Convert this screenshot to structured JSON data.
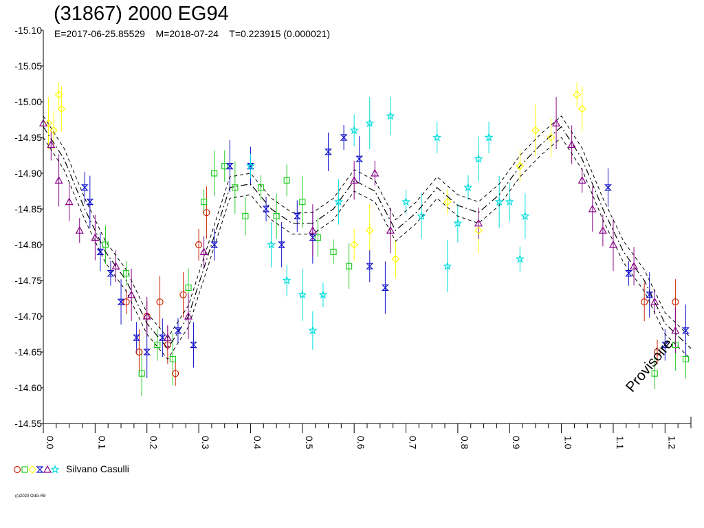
{
  "chart_data": {
    "type": "scatter",
    "title": "(31867) 2000 EG94",
    "subtitle": "E=2017-06-25.85529    M=2018-07-24    T=0.223915 (0.000021)",
    "xlabel": "",
    "ylabel": "",
    "xlim": [
      0.0,
      1.25
    ],
    "ylim": [
      -15.1,
      -14.55
    ],
    "x_ticks": [
      "0.0",
      "0.1",
      "0.2",
      "0.3",
      "0.4",
      "0.5",
      "0.6",
      "0.7",
      "0.8",
      "0.9",
      "1.0",
      "1.1",
      "1.2"
    ],
    "y_ticks": [
      "-15.10",
      "-15.05",
      "-15.00",
      "-14.95",
      "-14.90",
      "-14.85",
      "-14.80",
      "-14.75",
      "-14.70",
      "-14.65",
      "-14.60",
      "-14.55"
    ],
    "y_inverted": true,
    "grid": false,
    "fit_curve": {
      "phase": [
        0.0,
        0.04,
        0.08,
        0.12,
        0.16,
        0.2,
        0.24,
        0.28,
        0.32,
        0.36,
        0.4,
        0.44,
        0.48,
        0.52,
        0.56,
        0.6,
        0.64,
        0.68,
        0.72,
        0.76,
        0.8,
        0.84,
        0.88,
        0.92,
        0.96,
        1.0,
        1.04,
        1.08,
        1.12,
        1.16,
        1.2,
        1.25
      ],
      "mag": [
        -14.965,
        -14.92,
        -14.85,
        -14.79,
        -14.75,
        -14.69,
        -14.655,
        -14.7,
        -14.79,
        -14.88,
        -14.885,
        -14.85,
        -14.83,
        -14.83,
        -14.85,
        -14.89,
        -14.875,
        -14.82,
        -14.845,
        -14.88,
        -14.855,
        -14.845,
        -14.87,
        -14.91,
        -14.94,
        -14.965,
        -14.92,
        -14.85,
        -14.79,
        -14.75,
        -14.69,
        -14.655
      ],
      "band": 0.015
    },
    "series": [
      {
        "name": "",
        "symbol": "circle",
        "color": "#cc2200",
        "points": [
          [
            0.16,
            -14.72
          ],
          [
            0.185,
            -14.65
          ],
          [
            0.2,
            -14.7
          ],
          [
            0.225,
            -14.72
          ],
          [
            0.24,
            -14.66
          ],
          [
            0.255,
            -14.62
          ],
          [
            0.27,
            -14.73
          ],
          [
            0.3,
            -14.8
          ],
          [
            0.315,
            -14.845
          ],
          [
            1.16,
            -14.72
          ],
          [
            1.185,
            -14.65
          ],
          [
            1.22,
            -14.72
          ]
        ]
      },
      {
        "name": "",
        "symbol": "square",
        "color": "#22cc22",
        "points": [
          [
            0.12,
            -14.8
          ],
          [
            0.16,
            -14.76
          ],
          [
            0.19,
            -14.62
          ],
          [
            0.22,
            -14.66
          ],
          [
            0.25,
            -14.64
          ],
          [
            0.28,
            -14.74
          ],
          [
            0.31,
            -14.86
          ],
          [
            0.33,
            -14.9
          ],
          [
            0.35,
            -14.91
          ],
          [
            0.37,
            -14.88
          ],
          [
            0.39,
            -14.84
          ],
          [
            0.42,
            -14.88
          ],
          [
            0.45,
            -14.84
          ],
          [
            0.47,
            -14.89
          ],
          [
            0.5,
            -14.86
          ],
          [
            0.53,
            -14.81
          ],
          [
            0.56,
            -14.79
          ],
          [
            0.59,
            -14.77
          ],
          [
            1.18,
            -14.62
          ],
          [
            1.22,
            -14.66
          ],
          [
            1.24,
            -14.64
          ]
        ]
      },
      {
        "name": "",
        "symbol": "diamond",
        "color": "#ffff00",
        "points": [
          [
            0.01,
            -14.97
          ],
          [
            0.02,
            -14.96
          ],
          [
            0.03,
            -15.01
          ],
          [
            0.035,
            -14.99
          ],
          [
            0.6,
            -14.8
          ],
          [
            0.63,
            -14.82
          ],
          [
            0.68,
            -14.78
          ],
          [
            0.78,
            -14.86
          ],
          [
            0.84,
            -14.82
          ],
          [
            0.92,
            -14.91
          ],
          [
            0.95,
            -14.96
          ],
          [
            0.98,
            -14.95
          ],
          [
            1.03,
            -15.01
          ],
          [
            1.04,
            -14.99
          ]
        ]
      },
      {
        "name": "",
        "symbol": "hourglass",
        "color": "#1111cc",
        "points": [
          [
            0.08,
            -14.88
          ],
          [
            0.09,
            -14.86
          ],
          [
            0.11,
            -14.79
          ],
          [
            0.13,
            -14.76
          ],
          [
            0.15,
            -14.72
          ],
          [
            0.18,
            -14.67
          ],
          [
            0.2,
            -14.65
          ],
          [
            0.23,
            -14.67
          ],
          [
            0.26,
            -14.68
          ],
          [
            0.29,
            -14.66
          ],
          [
            0.33,
            -14.8
          ],
          [
            0.36,
            -14.91
          ],
          [
            0.4,
            -14.91
          ],
          [
            0.43,
            -14.85
          ],
          [
            0.46,
            -14.8
          ],
          [
            0.49,
            -14.84
          ],
          [
            0.52,
            -14.81
          ],
          [
            0.55,
            -14.93
          ],
          [
            0.58,
            -14.95
          ],
          [
            0.61,
            -14.92
          ],
          [
            0.63,
            -14.77
          ],
          [
            0.66,
            -14.74
          ],
          [
            1.09,
            -14.88
          ],
          [
            1.13,
            -14.76
          ],
          [
            1.17,
            -14.73
          ],
          [
            1.2,
            -14.66
          ],
          [
            1.24,
            -14.68
          ]
        ]
      },
      {
        "name": "",
        "symbol": "triangle",
        "color": "#880088",
        "points": [
          [
            0.0,
            -14.97
          ],
          [
            0.015,
            -14.94
          ],
          [
            0.03,
            -14.89
          ],
          [
            0.05,
            -14.86
          ],
          [
            0.07,
            -14.82
          ],
          [
            0.1,
            -14.81
          ],
          [
            0.14,
            -14.77
          ],
          [
            0.17,
            -14.73
          ],
          [
            0.2,
            -14.7
          ],
          [
            0.24,
            -14.67
          ],
          [
            0.28,
            -14.7
          ],
          [
            0.31,
            -14.79
          ],
          [
            0.52,
            -14.82
          ],
          [
            0.6,
            -14.89
          ],
          [
            0.64,
            -14.9
          ],
          [
            0.67,
            -14.82
          ],
          [
            0.84,
            -14.83
          ],
          [
            0.99,
            -14.97
          ],
          [
            1.02,
            -14.94
          ],
          [
            1.04,
            -14.89
          ],
          [
            1.06,
            -14.85
          ],
          [
            1.08,
            -14.82
          ],
          [
            1.1,
            -14.8
          ],
          [
            1.14,
            -14.77
          ],
          [
            1.18,
            -14.72
          ],
          [
            1.22,
            -14.68
          ]
        ]
      },
      {
        "name": "",
        "symbol": "star",
        "color": "#00dddd",
        "points": [
          [
            0.4,
            -14.91
          ],
          [
            0.44,
            -14.8
          ],
          [
            0.47,
            -14.75
          ],
          [
            0.5,
            -14.73
          ],
          [
            0.52,
            -14.68
          ],
          [
            0.54,
            -14.73
          ],
          [
            0.57,
            -14.86
          ],
          [
            0.6,
            -14.96
          ],
          [
            0.63,
            -14.97
          ],
          [
            0.67,
            -14.98
          ],
          [
            0.7,
            -14.86
          ],
          [
            0.73,
            -14.84
          ],
          [
            0.76,
            -14.95
          ],
          [
            0.78,
            -14.77
          ],
          [
            0.8,
            -14.83
          ],
          [
            0.82,
            -14.88
          ],
          [
            0.84,
            -14.92
          ],
          [
            0.86,
            -14.95
          ],
          [
            0.88,
            -14.86
          ],
          [
            0.9,
            -14.86
          ],
          [
            0.92,
            -14.78
          ],
          [
            0.93,
            -14.84
          ]
        ]
      }
    ],
    "legend": {
      "label": "Silvano Casulli",
      "placement": "bottom-left"
    }
  },
  "footer": {
    "copyright": "(c)2020 OdG-R8",
    "watermark": "Provisoire"
  },
  "colors": {
    "axis": "#000000",
    "fit": "#000000",
    "background": "#ffffff"
  }
}
